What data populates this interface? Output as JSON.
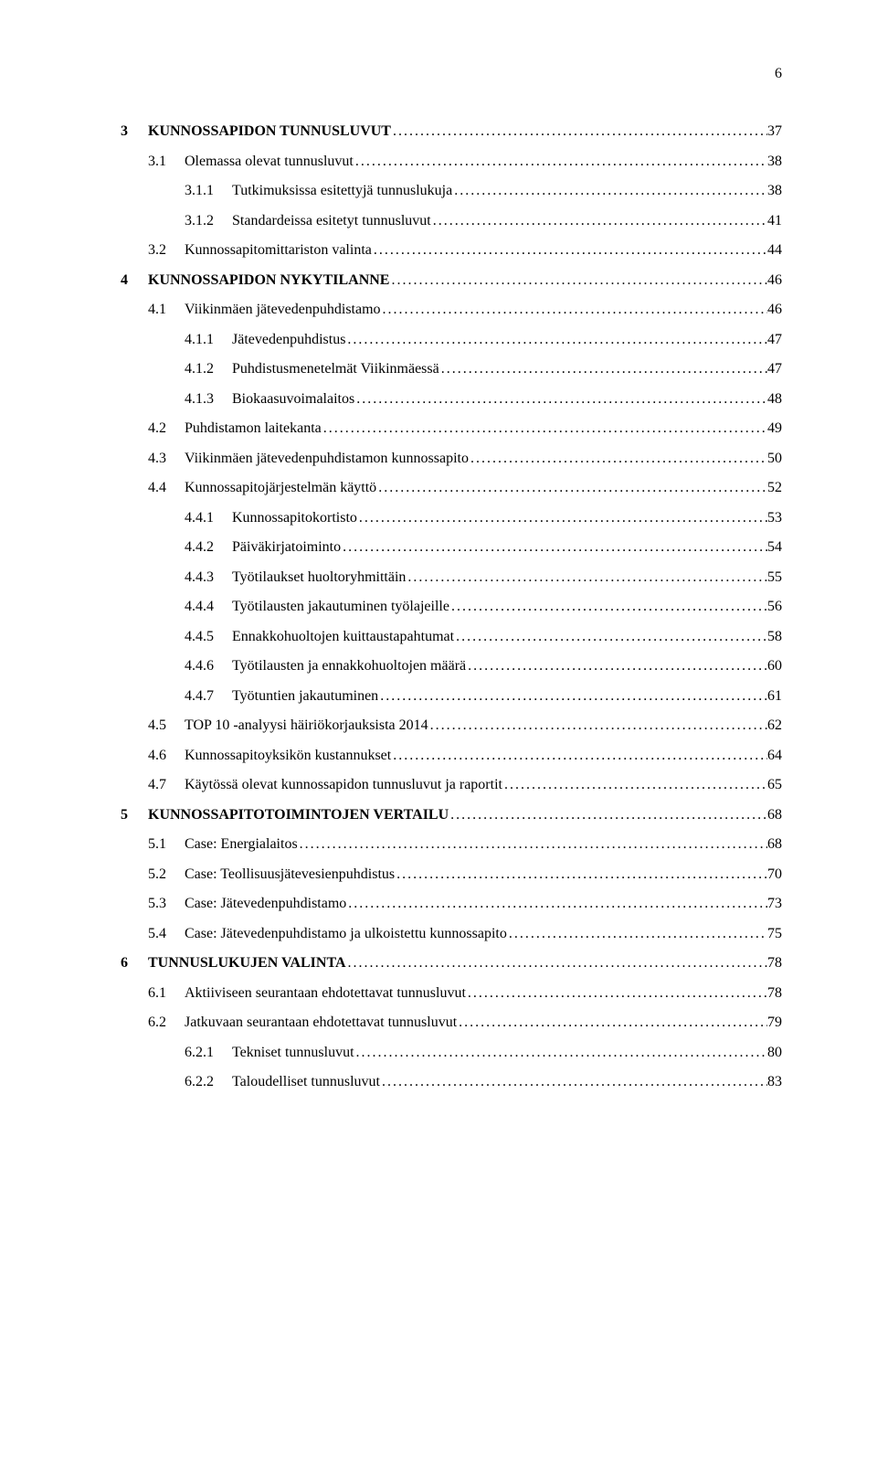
{
  "page_number": "6",
  "leader_char": ".",
  "colors": {
    "text": "#000000",
    "background": "#ffffff"
  },
  "typography": {
    "font_family": "Times New Roman",
    "body_fontsize_pt": 12,
    "bold_weight": 700
  },
  "toc": [
    {
      "level": 1,
      "num": "3",
      "title": "KUNNOSSAPIDON TUNNUSLUVUT",
      "page": "37"
    },
    {
      "level": 2,
      "num": "3.1",
      "title": "Olemassa olevat tunnusluvut",
      "page": "38"
    },
    {
      "level": 3,
      "num": "3.1.1",
      "title": "Tutkimuksissa esitettyjä tunnuslukuja",
      "page": "38"
    },
    {
      "level": 3,
      "num": "3.1.2",
      "title": "Standardeissa esitetyt tunnusluvut",
      "page": "41"
    },
    {
      "level": 2,
      "num": "3.2",
      "title": "Kunnossapitomittariston valinta",
      "page": "44"
    },
    {
      "level": 1,
      "num": "4",
      "title": "KUNNOSSAPIDON NYKYTILANNE",
      "page": "46"
    },
    {
      "level": 2,
      "num": "4.1",
      "title": "Viikinmäen jätevedenpuhdistamo",
      "page": "46"
    },
    {
      "level": 3,
      "num": "4.1.1",
      "title": "Jätevedenpuhdistus",
      "page": "47"
    },
    {
      "level": 3,
      "num": "4.1.2",
      "title": "Puhdistusmenetelmät Viikinmäessä",
      "page": "47"
    },
    {
      "level": 3,
      "num": "4.1.3",
      "title": "Biokaasuvoimalaitos",
      "page": "48"
    },
    {
      "level": 2,
      "num": "4.2",
      "title": "Puhdistamon laitekanta",
      "page": "49"
    },
    {
      "level": 2,
      "num": "4.3",
      "title": "Viikinmäen jätevedenpuhdistamon kunnossapito",
      "page": "50"
    },
    {
      "level": 2,
      "num": "4.4",
      "title": "Kunnossapitojärjestelmän käyttö",
      "page": "52"
    },
    {
      "level": 3,
      "num": "4.4.1",
      "title": "Kunnossapitokortisto",
      "page": "53"
    },
    {
      "level": 3,
      "num": "4.4.2",
      "title": "Päiväkirjatoiminto",
      "page": "54"
    },
    {
      "level": 3,
      "num": "4.4.3",
      "title": "Työtilaukset huoltoryhmittäin",
      "page": "55"
    },
    {
      "level": 3,
      "num": "4.4.4",
      "title": "Työtilausten jakautuminen työlajeille",
      "page": "56"
    },
    {
      "level": 3,
      "num": "4.4.5",
      "title": "Ennakkohuoltojen kuittaustapahtumat",
      "page": "58"
    },
    {
      "level": 3,
      "num": "4.4.6",
      "title": "Työtilausten ja ennakkohuoltojen määrä",
      "page": "60"
    },
    {
      "level": 3,
      "num": "4.4.7",
      "title": "Työtuntien jakautuminen",
      "page": "61"
    },
    {
      "level": 2,
      "num": "4.5",
      "title": "TOP 10 -analyysi häiriökorjauksista 2014",
      "page": "62"
    },
    {
      "level": 2,
      "num": "4.6",
      "title": "Kunnossapitoyksikön kustannukset",
      "page": "64"
    },
    {
      "level": 2,
      "num": "4.7",
      "title": "Käytössä olevat kunnossapidon tunnusluvut ja raportit",
      "page": "65"
    },
    {
      "level": 1,
      "num": "5",
      "title": "KUNNOSSAPITOTOIMINTOJEN VERTAILU",
      "page": "68"
    },
    {
      "level": 2,
      "num": "5.1",
      "title": "Case: Energialaitos",
      "page": "68"
    },
    {
      "level": 2,
      "num": "5.2",
      "title": "Case: Teollisuusjätevesienpuhdistus",
      "page": "70"
    },
    {
      "level": 2,
      "num": "5.3",
      "title": "Case: Jätevedenpuhdistamo",
      "page": "73"
    },
    {
      "level": 2,
      "num": "5.4",
      "title": "Case: Jätevedenpuhdistamo ja ulkoistettu kunnossapito",
      "page": "75"
    },
    {
      "level": 1,
      "num": "6",
      "title": "TUNNUSLUKUJEN VALINTA",
      "page": "78"
    },
    {
      "level": 2,
      "num": "6.1",
      "title": "Aktiiviseen seurantaan ehdotettavat tunnusluvut",
      "page": "78"
    },
    {
      "level": 2,
      "num": "6.2",
      "title": "Jatkuvaan seurantaan ehdotettavat tunnusluvut",
      "page": "79"
    },
    {
      "level": 3,
      "num": "6.2.1",
      "title": "Tekniset tunnusluvut",
      "page": "80"
    },
    {
      "level": 3,
      "num": "6.2.2",
      "title": "Taloudelliset tunnusluvut",
      "page": "83"
    }
  ]
}
